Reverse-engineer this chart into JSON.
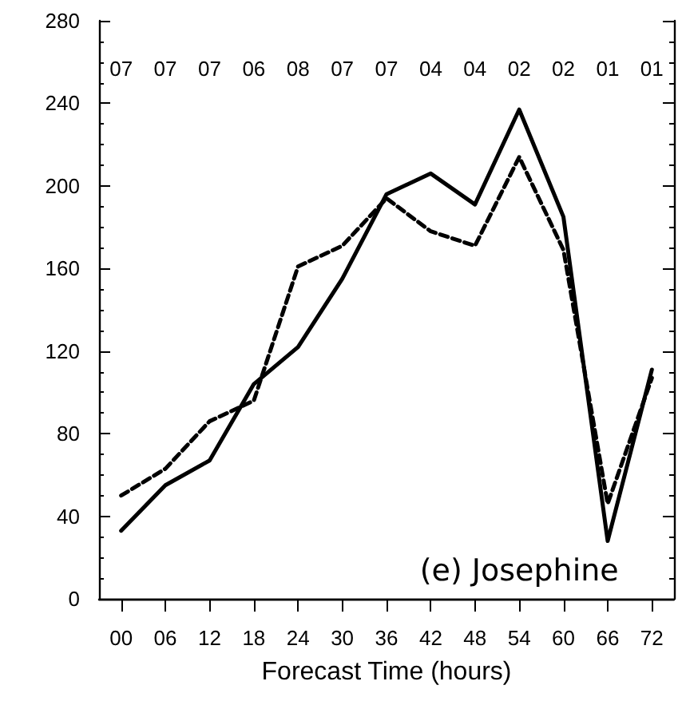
{
  "chart_data": {
    "type": "line",
    "xlabel": "Forecast Time (hours)",
    "categories": [
      "00",
      "06",
      "12",
      "18",
      "24",
      "30",
      "36",
      "42",
      "48",
      "54",
      "60",
      "66",
      "72"
    ],
    "ylim": [
      0,
      280
    ],
    "yticks": [
      0,
      40,
      80,
      120,
      160,
      200,
      240,
      280
    ],
    "marker": "none",
    "series": [
      {
        "color": "#000000",
        "line_style": "solid",
        "values": [
          33,
          55,
          67,
          104,
          122,
          155,
          196,
          206,
          191,
          237,
          185,
          28,
          111
        ]
      },
      {
        "color": "#000000",
        "line_style": "dashed",
        "values": [
          50,
          63,
          86,
          96,
          161,
          171,
          194,
          178,
          171,
          214,
          169,
          46,
          107
        ]
      }
    ],
    "annotations": [
      "07",
      "07",
      "07",
      "06",
      "08",
      "07",
      "07",
      "04",
      "04",
      "02",
      "02",
      "01",
      "01",
      "(e) Josephine"
    ]
  }
}
